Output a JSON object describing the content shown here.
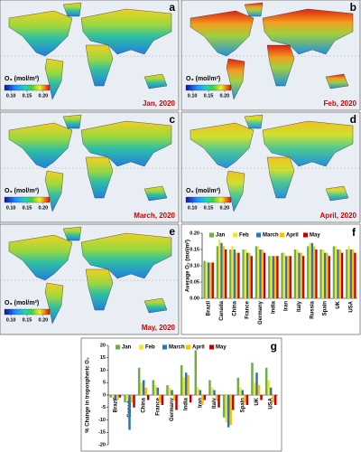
{
  "maps": {
    "colorbar": {
      "title": "O₃ (mol/m²)",
      "clim": [
        0.08,
        0.22
      ],
      "ticks": [
        {
          "value": 0.1,
          "label": "0.10"
        },
        {
          "value": 0.15,
          "label": "0.15"
        },
        {
          "value": 0.2,
          "label": "0.20"
        }
      ]
    },
    "panels": [
      {
        "label": "a",
        "date": "Jan, 2020"
      },
      {
        "label": "b",
        "date": "Feb, 2020"
      },
      {
        "label": "c",
        "date": "March, 2020"
      },
      {
        "label": "d",
        "date": "April, 2020"
      },
      {
        "label": "e",
        "date": "May, 2020"
      }
    ]
  },
  "chart_data": [
    {
      "type": "bar",
      "label": "f",
      "ylabel": "Average O₃ (mol/m²)",
      "legend": "top",
      "categories": [
        "Brazil",
        "Canada",
        "China",
        "France",
        "Germany",
        "India",
        "Iran",
        "Italy",
        "Russia",
        "Spain",
        "UK",
        "USA"
      ],
      "series": [
        {
          "name": "Jan",
          "color": "#70ad47",
          "values": [
            0.115,
            0.16,
            0.15,
            0.15,
            0.16,
            0.13,
            0.14,
            0.15,
            0.16,
            0.15,
            0.16,
            0.15
          ]
        },
        {
          "name": "Feb",
          "color": "#f2e33a",
          "values": [
            0.112,
            0.18,
            0.16,
            0.15,
            0.16,
            0.13,
            0.14,
            0.15,
            0.17,
            0.15,
            0.16,
            0.16
          ]
        },
        {
          "name": "March",
          "color": "#2e75b6",
          "values": [
            0.11,
            0.17,
            0.15,
            0.14,
            0.15,
            0.13,
            0.13,
            0.14,
            0.17,
            0.14,
            0.15,
            0.15
          ]
        },
        {
          "name": "April",
          "color": "#ffc000",
          "values": [
            0.11,
            0.16,
            0.14,
            0.14,
            0.15,
            0.13,
            0.13,
            0.14,
            0.16,
            0.14,
            0.15,
            0.15
          ]
        },
        {
          "name": "May",
          "color": "#c00000",
          "values": [
            0.11,
            0.15,
            0.14,
            0.13,
            0.14,
            0.13,
            0.13,
            0.13,
            0.15,
            0.13,
            0.14,
            0.14
          ]
        }
      ],
      "ylim": [
        0,
        0.2
      ],
      "yticks": [
        {
          "value": 0,
          "label": "0.00"
        },
        {
          "value": 0.05,
          "label": "0.05"
        },
        {
          "value": 0.1,
          "label": "0.10"
        },
        {
          "value": 0.15,
          "label": "0.15"
        },
        {
          "value": 0.2,
          "label": "0.20"
        }
      ]
    },
    {
      "type": "bar",
      "label": "g",
      "ylabel": "% Change in tropospheric O₃",
      "legend": "top",
      "categories": [
        "Brazil",
        "Canada",
        "China",
        "France",
        "Germany",
        "India",
        "Iran",
        "Italy",
        "Russia",
        "Spain",
        "UK",
        "USA"
      ],
      "series": [
        {
          "name": "Jan",
          "color": "#70ad47",
          "values": [
            -1,
            -3,
            11,
            6,
            4,
            12,
            18,
            6,
            -9,
            7,
            13,
            11
          ]
        },
        {
          "name": "Feb",
          "color": "#f2e33a",
          "values": [
            -1,
            -2,
            5,
            4,
            3,
            7,
            3,
            3,
            -11,
            3,
            5,
            6
          ]
        },
        {
          "name": "March",
          "color": "#2e75b6",
          "values": [
            -2,
            -14,
            6,
            3,
            2,
            9,
            2,
            2,
            -13,
            2,
            9,
            3
          ]
        },
        {
          "name": "April",
          "color": "#ffc000",
          "values": [
            -2,
            -3,
            3,
            -3,
            -2,
            8,
            -4,
            -2,
            -12,
            -3,
            4,
            -3
          ]
        },
        {
          "name": "May",
          "color": "#c00000",
          "values": [
            -1,
            -5,
            -2,
            -4,
            -6,
            -3,
            -2,
            -5,
            -6,
            -4,
            -2,
            -4
          ]
        }
      ],
      "ylim": [
        -20,
        20
      ],
      "yticks": [
        -20,
        -15,
        -10,
        -5,
        0,
        5,
        10,
        15,
        20
      ]
    }
  ]
}
